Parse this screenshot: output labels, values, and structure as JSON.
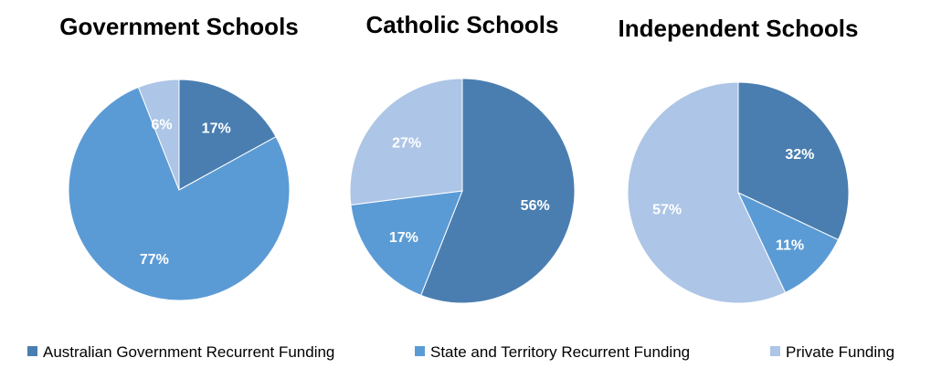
{
  "chart_data": [
    {
      "type": "pie",
      "title": "Government Schools",
      "categories": [
        "Australian Government Recurrent Funding",
        "State and Territory Recurrent Funding",
        "Private Funding"
      ],
      "values": [
        17,
        77,
        6
      ],
      "labels": [
        "17%",
        "77%",
        "6%"
      ]
    },
    {
      "type": "pie",
      "title": "Catholic Schools",
      "categories": [
        "Australian Government Recurrent Funding",
        "State and Territory Recurrent Funding",
        "Private Funding"
      ],
      "values": [
        56,
        17,
        27
      ],
      "labels": [
        "56%",
        "17%",
        "27%"
      ]
    },
    {
      "type": "pie",
      "title": "Independent Schools",
      "categories": [
        "Australian Government Recurrent Funding",
        "State and Territory Recurrent Funding",
        "Private Funding"
      ],
      "values": [
        32,
        11,
        57
      ],
      "labels": [
        "32%",
        "11%",
        "57%"
      ]
    }
  ],
  "legend": {
    "placement": "bottom",
    "items": [
      {
        "label": "Australian Government Recurrent Funding",
        "color": "#4a7eb0"
      },
      {
        "label": "State and Territory Recurrent Funding",
        "color": "#5b9bd5"
      },
      {
        "label": "Private Funding",
        "color": "#adc5e6"
      }
    ]
  },
  "colors": [
    "#4a7eb0",
    "#5b9bd5",
    "#adc5e6"
  ]
}
